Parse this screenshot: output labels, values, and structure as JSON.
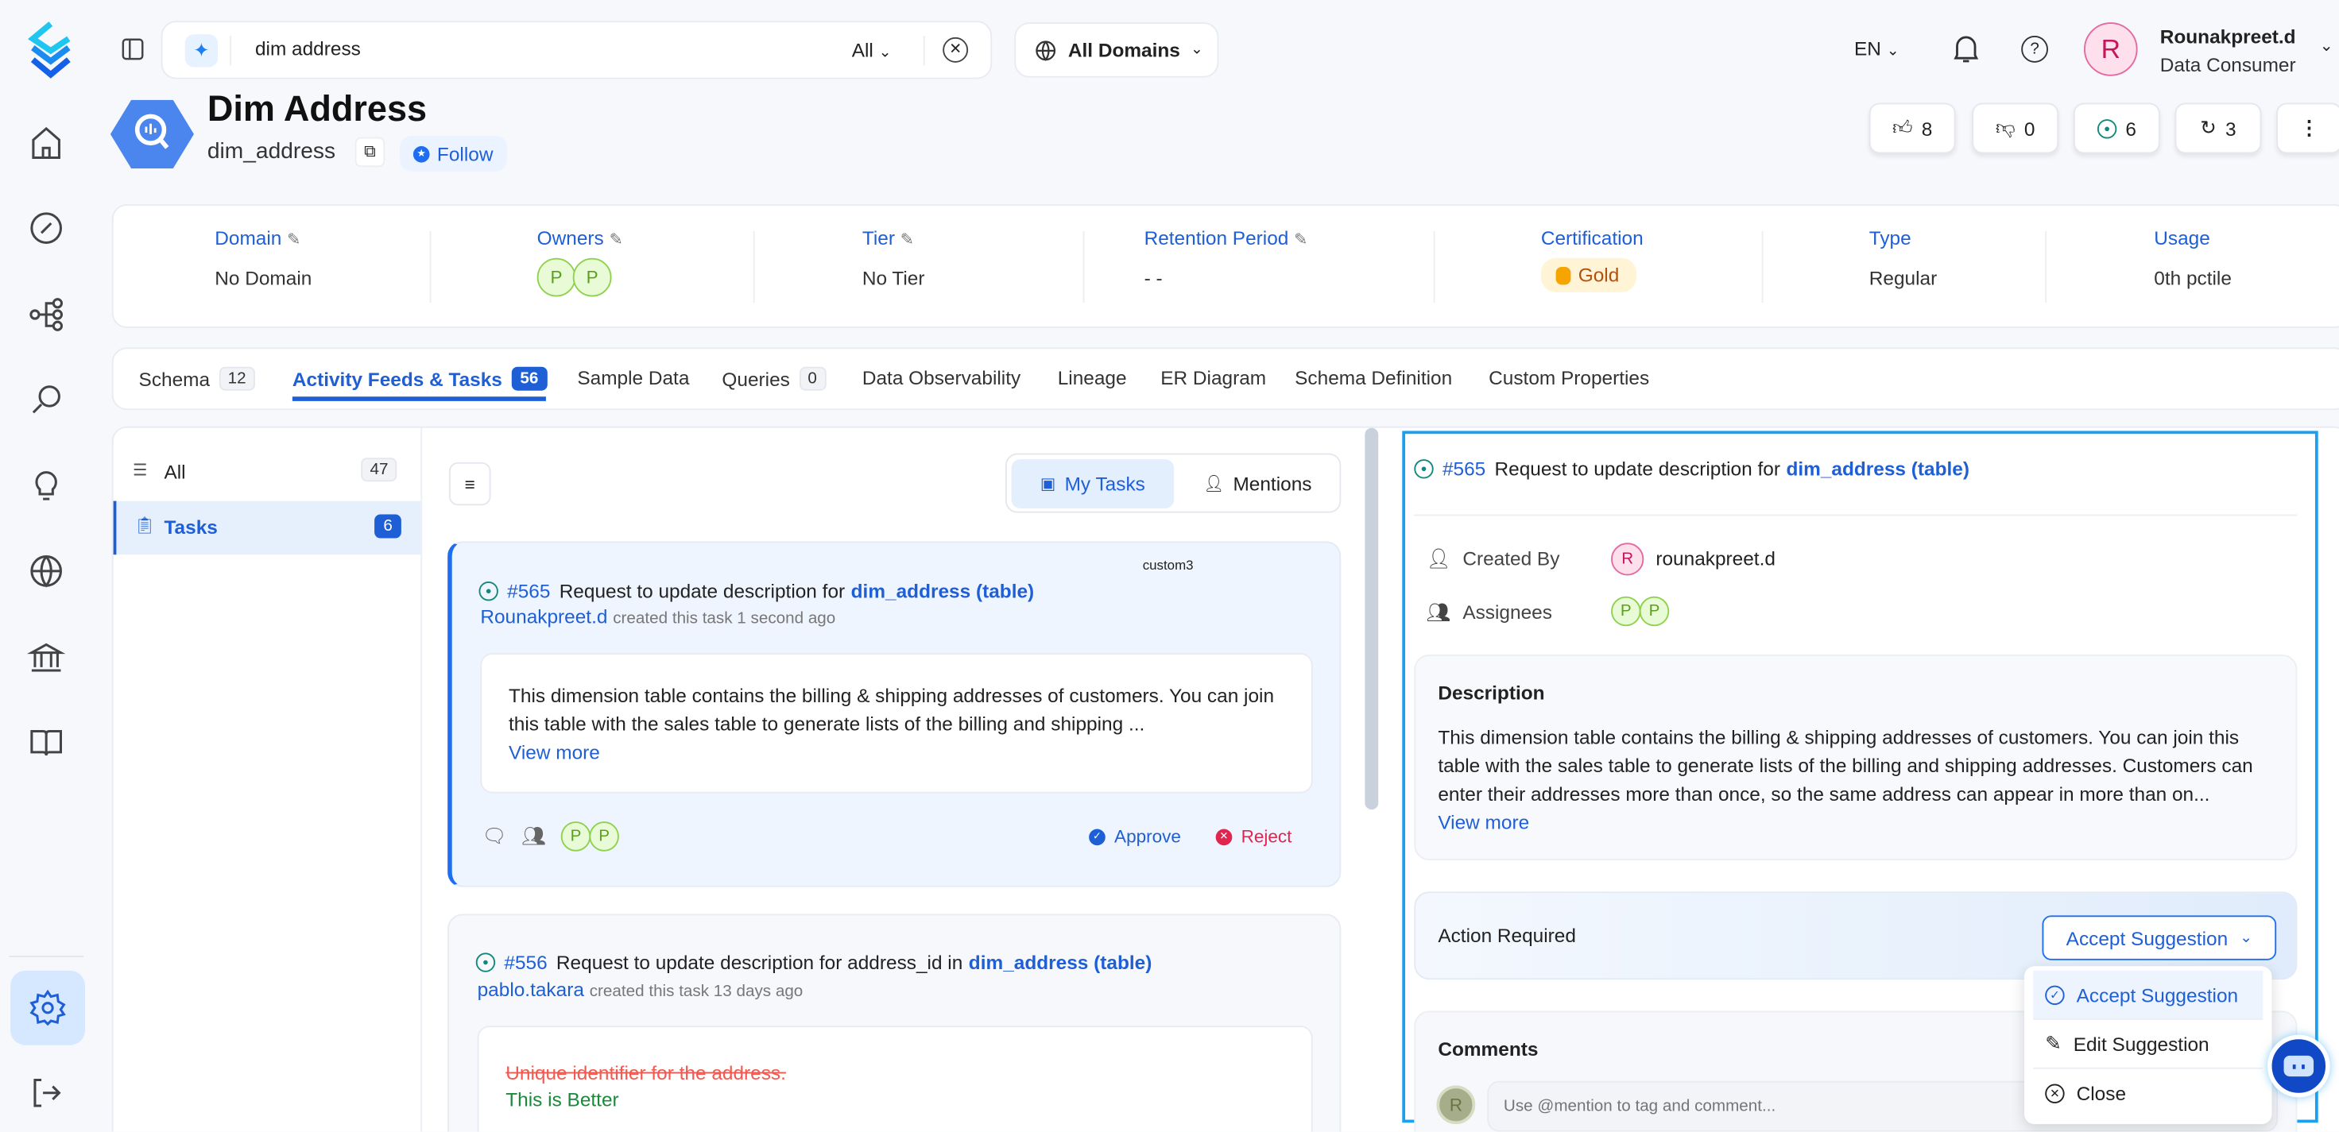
{
  "header": {
    "search_value": "dim address",
    "search_scope": "All",
    "domain_selector": "All Domains",
    "language": "EN",
    "user": {
      "initial": "R",
      "name": "Rounakpreet.d",
      "role": "Data Consumer"
    }
  },
  "asset": {
    "title": "Dim Address",
    "fqn": "dim_address",
    "follow_label": "Follow",
    "actions": {
      "upvotes": "8",
      "downvotes": "0",
      "tasks": "6",
      "versions": "3"
    }
  },
  "stats": [
    {
      "label": "Domain",
      "value": "No Domain"
    },
    {
      "label": "Owners",
      "value": ""
    },
    {
      "label": "Tier",
      "value": "No Tier"
    },
    {
      "label": "Retention Period",
      "value": "- -"
    },
    {
      "label": "Certification",
      "value": "Gold"
    },
    {
      "label": "Type",
      "value": "Regular"
    },
    {
      "label": "Usage",
      "value": "0th pctile"
    }
  ],
  "owners": [
    "P",
    "P"
  ],
  "tabs": [
    {
      "label": "Schema",
      "count": "12"
    },
    {
      "label": "Activity Feeds & Tasks",
      "count": "56"
    },
    {
      "label": "Sample Data"
    },
    {
      "label": "Queries",
      "count": "0"
    },
    {
      "label": "Data Observability"
    },
    {
      "label": "Lineage"
    },
    {
      "label": "ER Diagram"
    },
    {
      "label": "Schema Definition"
    },
    {
      "label": "Custom Properties"
    }
  ],
  "feed_filters": [
    {
      "label": "All",
      "count": "47"
    },
    {
      "label": "Tasks",
      "count": "6"
    }
  ],
  "toggle": {
    "my_tasks": "My Tasks",
    "mentions": "Mentions"
  },
  "tasks": [
    {
      "tag": "custom3",
      "id": "#565",
      "title": "Request to update description for",
      "entity": "dim_address (table)",
      "author": "Rounakpreet.d",
      "meta": "created this task 1 second ago",
      "body": "This dimension table contains the billing & shipping addresses of customers. You can join this table with the sales table to generate lists of the billing and shipping ...",
      "view_more": "View more",
      "assignees": [
        "P",
        "P"
      ],
      "approve": "Approve",
      "reject": "Reject"
    },
    {
      "id": "#556",
      "title": "Request to update description for address_id in",
      "entity": "dim_address (table)",
      "author": "pablo.takara",
      "meta": "created this task 13 days ago",
      "old_text": "Unique identifier for the address.",
      "new_text": "This is Better"
    }
  ],
  "detail": {
    "id": "#565",
    "title": "Request to update description for",
    "entity": "dim_address (table)",
    "created_by_label": "Created By",
    "created_by_initial": "R",
    "created_by": "rounakpreet.d",
    "assignees_label": "Assignees",
    "assignees": [
      "P",
      "P"
    ],
    "description_label": "Description",
    "description": "This dimension table contains the billing & shipping addresses of customers. You can join this table with the sales table to generate lists of the billing and shipping addresses. Customers can enter their addresses more than once, so the same address can appear in more than on...",
    "view_more": "View more",
    "action_label": "Action Required",
    "action_selected": "Accept Suggestion",
    "action_options": [
      "Accept Suggestion",
      "Edit Suggestion",
      "Close"
    ],
    "comments_label": "Comments",
    "comment_initial": "R",
    "comment_placeholder": "Use @mention to tag and comment..."
  },
  "colors": {
    "accent": "#1f5fd6",
    "approve": "#1f5fd6",
    "reject": "#e0264f",
    "gold_bg": "#fff4d6",
    "selection_outline": "#1aa0ef"
  }
}
